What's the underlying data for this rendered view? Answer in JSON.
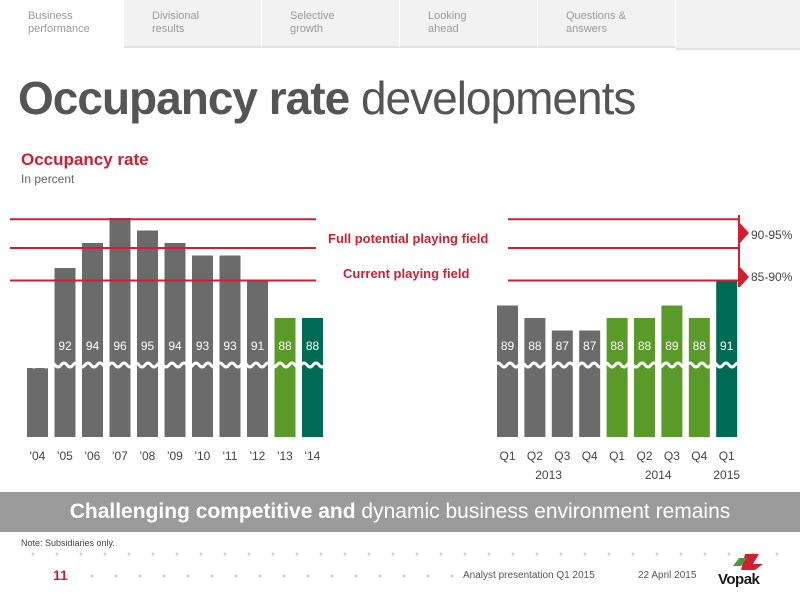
{
  "tabs": [
    {
      "label": "Business\nperformance",
      "active": true
    },
    {
      "label": "Divisional\nresults",
      "active": false
    },
    {
      "label": "Selective\ngrowth",
      "active": false
    },
    {
      "label": "Looking\nahead",
      "active": false
    },
    {
      "label": "Questions &\nanswers",
      "active": false
    }
  ],
  "title": {
    "bold": "Occupancy rate",
    "light": " developments"
  },
  "subtitle": "Occupancy rate",
  "unit": "In percent",
  "banner": {
    "bold": "Challenging competitive and",
    "light": " dynamic business environment remains"
  },
  "note": "Note: Subsidiaries only.",
  "footer": {
    "page": "11",
    "presentation": "Analyst presentation Q1 2015",
    "date": "22 April 2015",
    "logo": "Vopak"
  },
  "colors": {
    "grey": "#6b6b6b",
    "green": "#5a9a28",
    "teal": "#006b54",
    "red": "#d02030"
  },
  "chart_data": [
    {
      "type": "bar",
      "categories": [
        "'04",
        "'05",
        "'06",
        "'07",
        "'08",
        "'09",
        "'10",
        "'11",
        "'12",
        "'13",
        "'14"
      ],
      "values": [
        84,
        92,
        94,
        96,
        95,
        94,
        93,
        93,
        91,
        88,
        88
      ],
      "bar_colors": [
        "grey",
        "grey",
        "grey",
        "grey",
        "grey",
        "grey",
        "grey",
        "grey",
        "grey",
        "green",
        "teal"
      ],
      "axis_break": true
    },
    {
      "type": "bar",
      "categories": [
        "Q1",
        "Q2",
        "Q3",
        "Q4",
        "Q1",
        "Q2",
        "Q3",
        "Q4",
        "Q1"
      ],
      "groups": [
        {
          "label": "2013",
          "count": 4
        },
        {
          "label": "2014",
          "count": 4
        },
        {
          "label": "2015",
          "count": 1
        }
      ],
      "values": [
        89,
        88,
        87,
        87,
        88,
        88,
        89,
        88,
        91
      ],
      "bar_colors": [
        "grey",
        "grey",
        "grey",
        "grey",
        "green",
        "green",
        "green",
        "green",
        "teal"
      ],
      "axis_break": true
    }
  ],
  "annotations": {
    "full_potential": "Full potential playing field",
    "current": "Current playing field",
    "range_high": "90-95%",
    "range_low": "85-90%"
  }
}
